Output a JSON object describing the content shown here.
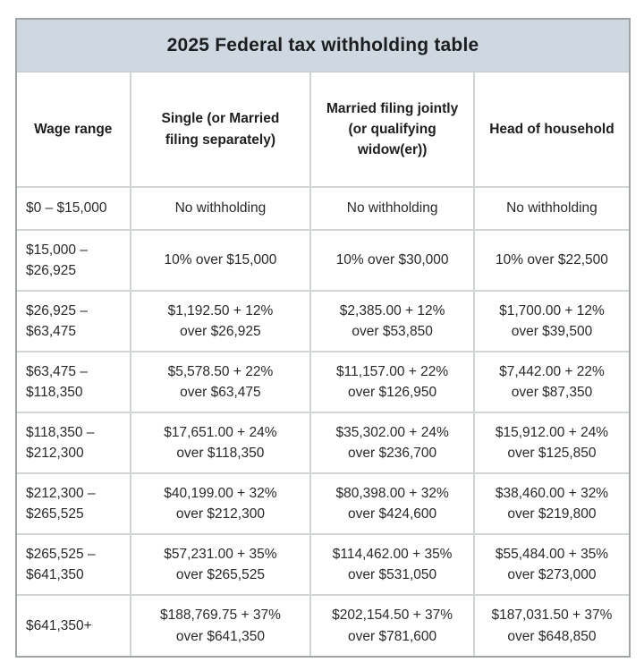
{
  "chart_data": {
    "type": "table",
    "title": "2025 Federal tax withholding table",
    "title_bar_color": "#cfd8e0",
    "columns": [
      "Wage range",
      "Single (or Married\nfiling separately)",
      "Married filing jointly\n(or qualifying\nwidow(er))",
      "Head of household"
    ],
    "rows": [
      [
        "$0 – $15,000",
        "No withholding",
        "No withholding",
        "No withholding"
      ],
      [
        "$15,000 –\n$26,925",
        "10% over $15,000",
        "10% over $30,000",
        "10% over $22,500"
      ],
      [
        "$26,925 –\n$63,475",
        "$1,192.50 + 12%\nover $26,925",
        "$2,385.00 + 12%\nover $53,850",
        "$1,700.00 + 12%\nover $39,500"
      ],
      [
        "$63,475 –\n$118,350",
        "$5,578.50 + 22%\nover $63,475",
        "$11,157.00 + 22%\nover $126,950",
        "$7,442.00 + 22%\nover $87,350"
      ],
      [
        "$118,350 –\n$212,300",
        "$17,651.00 + 24%\nover $118,350",
        "$35,302.00 + 24%\nover $236,700",
        "$15,912.00 + 24%\nover $125,850"
      ],
      [
        "$212,300 –\n$265,525",
        "$40,199.00 + 32%\nover $212,300",
        "$80,398.00 + 32%\nover $424,600",
        "$38,460.00 + 32%\nover $219,800"
      ],
      [
        "$265,525 –\n$641,350",
        "$57,231.00 + 35%\nover $265,525",
        "$114,462.00 + 35%\nover $531,050",
        "$55,484.00 + 35%\nover $273,000"
      ],
      [
        "$641,350+",
        "$188,769.75 + 37%\nover $641,350",
        "$202,154.50 + 37%\nover $781,600",
        "$187,031.50 + 37%\nover $648,850"
      ]
    ],
    "colors": {
      "outer_border": "#9fa4a7",
      "inner_border": "#d2d5d6",
      "title_background": "#cfd8e0",
      "cell_background": "#ffffff",
      "text": "#28292b"
    }
  }
}
